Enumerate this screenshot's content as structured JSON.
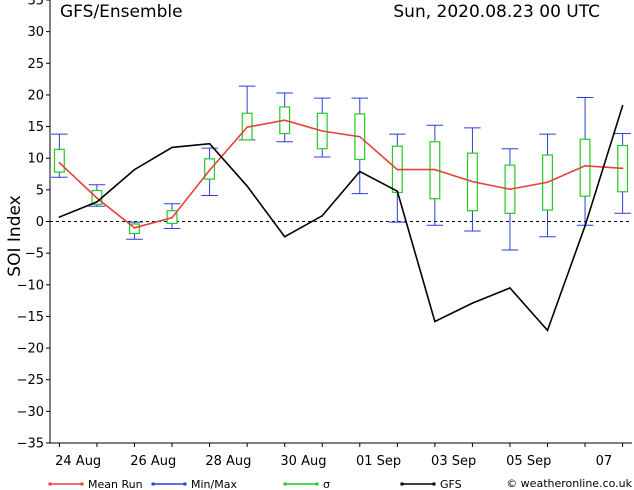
{
  "chart_data": {
    "type": "line",
    "title": "GFS/Ensemble",
    "run_label": "Sun, 2020.08.23   00 UTC",
    "ylabel": "SOI Index",
    "ylim": [
      -35,
      35
    ],
    "yticks": [
      -35,
      -30,
      -25,
      -20,
      -15,
      -10,
      -5,
      0,
      5,
      10,
      15,
      20,
      25,
      30,
      35
    ],
    "xlim": [
      -0.25,
      15.25
    ],
    "xtick_labels": [
      {
        "x": 0.5,
        "label": "24 Aug"
      },
      {
        "x": 2.5,
        "label": "26 Aug"
      },
      {
        "x": 4.5,
        "label": "28 Aug"
      },
      {
        "x": 6.5,
        "label": "30 Aug"
      },
      {
        "x": 8.5,
        "label": "01 Sep"
      },
      {
        "x": 10.5,
        "label": "03 Sep"
      },
      {
        "x": 12.5,
        "label": "05 Sep"
      },
      {
        "x": 14.5,
        "label": "07"
      }
    ],
    "ensemble": [
      {
        "x": 0,
        "min": 7.0,
        "max": 13.8,
        "sigma_low": 7.8,
        "sigma_high": 11.4,
        "mean": 9.3
      },
      {
        "x": 1,
        "min": 2.4,
        "max": 5.8,
        "sigma_low": 2.7,
        "sigma_high": 4.9,
        "mean": 3.7
      },
      {
        "x": 2,
        "min": -2.8,
        "max": -0.1,
        "sigma_low": -1.9,
        "sigma_high": -0.4,
        "mean": -1.0
      },
      {
        "x": 3,
        "min": -1.1,
        "max": 2.8,
        "sigma_low": -0.3,
        "sigma_high": 1.7,
        "mean": 0.6
      },
      {
        "x": 4,
        "min": 4.1,
        "max": 11.6,
        "sigma_low": 6.7,
        "sigma_high": 9.9,
        "mean": 8.1
      },
      {
        "x": 5,
        "min": 12.9,
        "max": 21.4,
        "sigma_low": 12.9,
        "sigma_high": 17.1,
        "mean": 14.9
      },
      {
        "x": 6,
        "min": 12.6,
        "max": 20.3,
        "sigma_low": 13.9,
        "sigma_high": 18.1,
        "mean": 16.0
      },
      {
        "x": 7,
        "min": 10.2,
        "max": 19.5,
        "sigma_low": 11.5,
        "sigma_high": 17.1,
        "mean": 14.3
      },
      {
        "x": 8,
        "min": 4.4,
        "max": 19.5,
        "sigma_low": 9.8,
        "sigma_high": 17.0,
        "mean": 13.4
      },
      {
        "x": 9,
        "min": -0.1,
        "max": 13.8,
        "sigma_low": 4.6,
        "sigma_high": 11.9,
        "mean": 8.2
      },
      {
        "x": 10,
        "min": -0.6,
        "max": 15.2,
        "sigma_low": 3.6,
        "sigma_high": 12.6,
        "mean": 8.2
      },
      {
        "x": 11,
        "min": -1.5,
        "max": 14.8,
        "sigma_low": 1.7,
        "sigma_high": 10.8,
        "mean": 6.3
      },
      {
        "x": 12,
        "min": -4.5,
        "max": 11.5,
        "sigma_low": 1.3,
        "sigma_high": 8.9,
        "mean": 5.1
      },
      {
        "x": 13,
        "min": -2.4,
        "max": 13.8,
        "sigma_low": 1.8,
        "sigma_high": 10.5,
        "mean": 6.2
      },
      {
        "x": 14,
        "min": -0.6,
        "max": 19.6,
        "sigma_low": 4.0,
        "sigma_high": 13.0,
        "mean": 8.8
      },
      {
        "x": 15,
        "min": 1.3,
        "max": 13.9,
        "sigma_low": 4.7,
        "sigma_high": 12.0,
        "mean": 8.4
      }
    ],
    "gfs": [
      {
        "x": 0,
        "y": 0.7
      },
      {
        "x": 1,
        "y": 3.1
      },
      {
        "x": 2,
        "y": 8.2
      },
      {
        "x": 3,
        "y": 11.7
      },
      {
        "x": 4,
        "y": 12.3
      },
      {
        "x": 5,
        "y": 5.6
      },
      {
        "x": 6,
        "y": -2.4
      },
      {
        "x": 7,
        "y": 0.9
      },
      {
        "x": 8,
        "y": 7.9
      },
      {
        "x": 9,
        "y": 4.8
      },
      {
        "x": 10,
        "y": -15.8
      },
      {
        "x": 11,
        "y": -12.9
      },
      {
        "x": 12,
        "y": -10.5
      },
      {
        "x": 13,
        "y": -17.2
      },
      {
        "x": 14,
        "y": -0.7
      },
      {
        "x": 15,
        "y": 18.3
      }
    ],
    "legend": [
      {
        "label": "Mean Run",
        "color": "#e8403a"
      },
      {
        "label": "Min/Max",
        "color": "#2a3fd6"
      },
      {
        "label": "σ",
        "color": "#22cc22"
      },
      {
        "label": "GFS",
        "color": "#000000"
      }
    ],
    "credit": "© weatheronline.co.uk",
    "colors": {
      "mean": "#e8403a",
      "minmax": "#2a3fd6",
      "sigma": "#22cc22",
      "gfs": "#000000",
      "axis": "#000000"
    },
    "grid": false,
    "zero_line": "dashed"
  }
}
